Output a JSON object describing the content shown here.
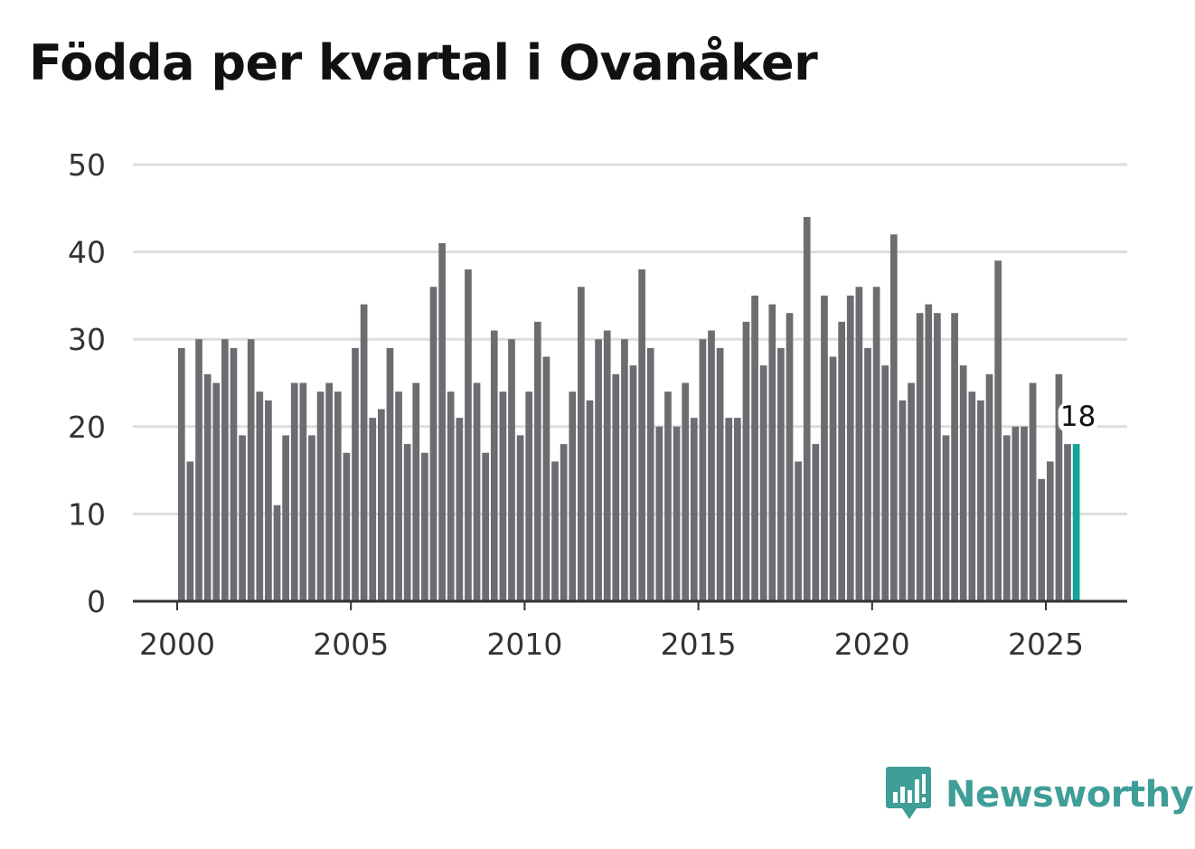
{
  "title": "Födda per kvartal i Ovanåker",
  "brand": {
    "name": "Newsworthy",
    "icon": "bar-chart-speech-bubble-icon",
    "color": "#3f9e98"
  },
  "colors": {
    "bar": "#6d6c71",
    "highlight": "#12a39a",
    "grid": "#dddddd",
    "axis": "#333333"
  },
  "chart_data": {
    "type": "bar",
    "title": "Födda per kvartal i Ovanåker",
    "xlabel": "",
    "ylabel": "",
    "ylim": [
      0,
      50
    ],
    "yticks": [
      "0",
      "10",
      "20",
      "30",
      "40",
      "50"
    ],
    "xticks": [
      "2000",
      "2005",
      "2010",
      "2015",
      "2020",
      "2025"
    ],
    "x_start_year": 2000,
    "periods_per_year": 4,
    "grid": true,
    "values": [
      29,
      16,
      30,
      26,
      25,
      30,
      29,
      19,
      30,
      24,
      23,
      11,
      19,
      25,
      25,
      19,
      24,
      25,
      24,
      17,
      29,
      34,
      21,
      22,
      29,
      24,
      18,
      25,
      17,
      36,
      41,
      24,
      21,
      38,
      25,
      17,
      31,
      24,
      30,
      19,
      24,
      32,
      28,
      16,
      18,
      24,
      36,
      23,
      30,
      31,
      26,
      30,
      27,
      38,
      29,
      20,
      24,
      20,
      25,
      21,
      30,
      31,
      29,
      21,
      21,
      32,
      35,
      27,
      34,
      29,
      33,
      16,
      44,
      18,
      35,
      28,
      32,
      35,
      36,
      29,
      36,
      27,
      42,
      23,
      25,
      33,
      34,
      33,
      19,
      33,
      27,
      24,
      23,
      26,
      39,
      19,
      20,
      20,
      25,
      14,
      16,
      26,
      18,
      18
    ],
    "highlight_last": true,
    "last_label": "18"
  }
}
